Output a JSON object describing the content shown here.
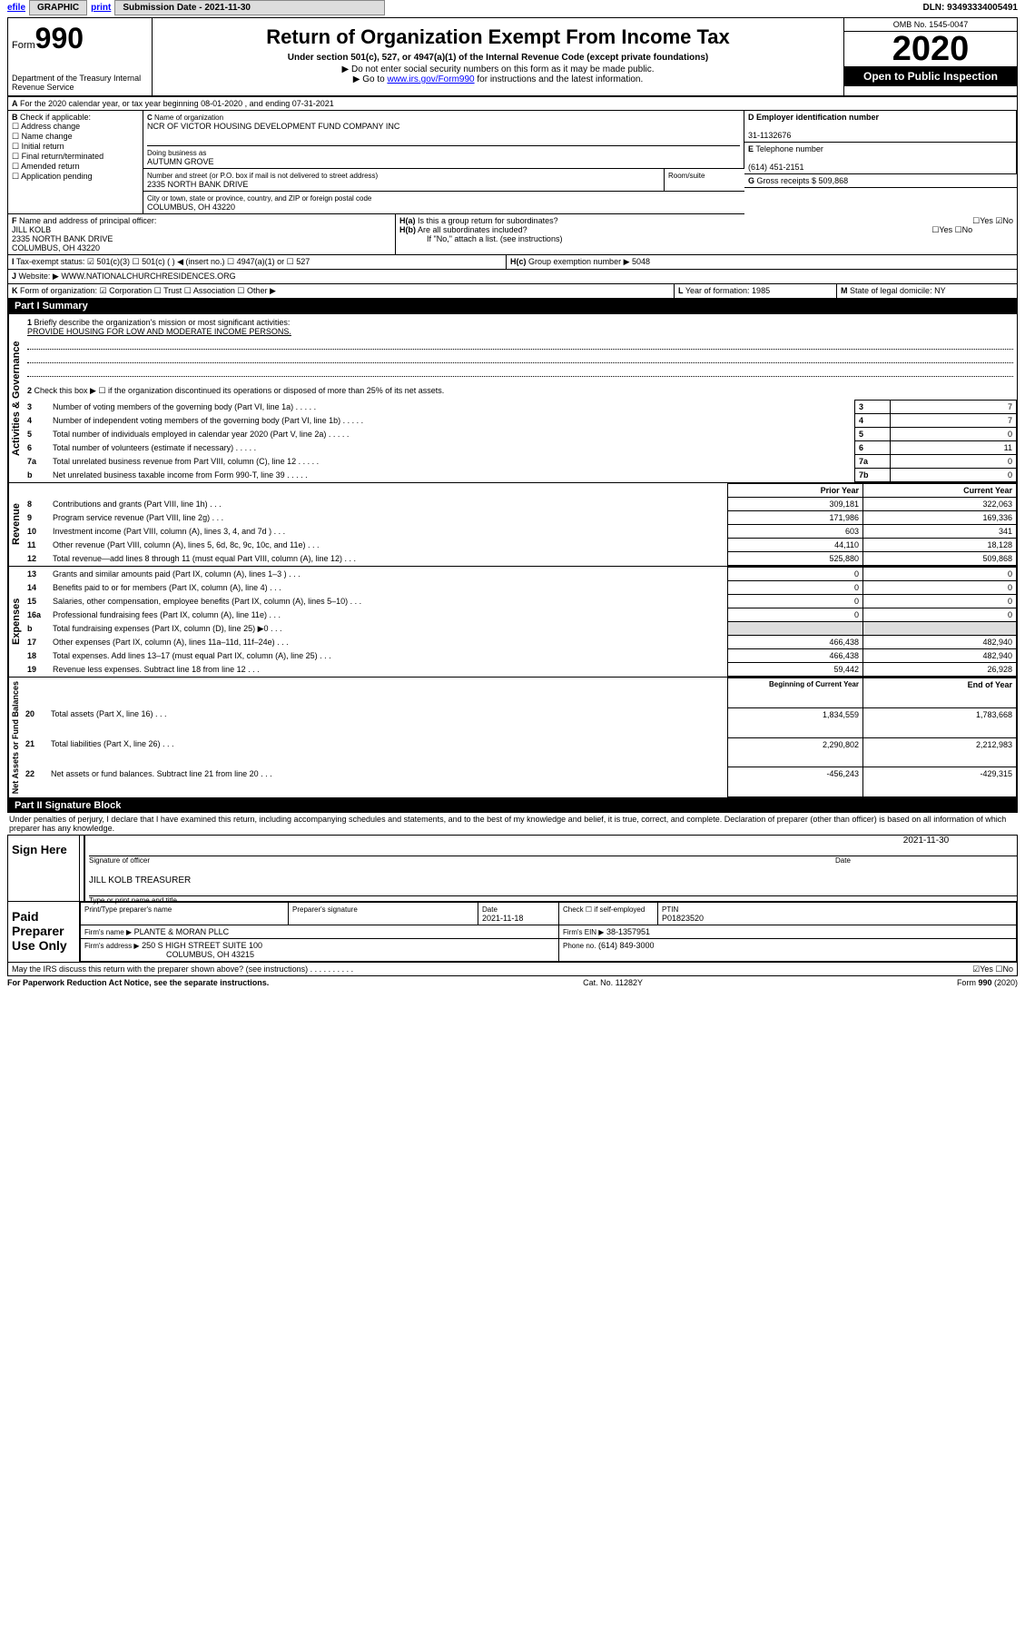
{
  "topbar": {
    "efile": "efile",
    "graphic": "GRAPHIC",
    "print": "print",
    "subdate_lbl": "Submission Date - 2021-11-30",
    "dln": "DLN: 93493334005491"
  },
  "header": {
    "form": "Form",
    "form_no": "990",
    "dept": "Department of the Treasury Internal Revenue Service",
    "title": "Return of Organization Exempt From Income Tax",
    "sub1": "Under section 501(c), 527, or 4947(a)(1) of the Internal Revenue Code (except private foundations)",
    "sub2": "▶ Do not enter social security numbers on this form as it may be made public.",
    "sub3_pre": "▶ Go to ",
    "sub3_link": "www.irs.gov/Form990",
    "sub3_post": " for instructions and the latest information.",
    "omb": "OMB No. 1545-0047",
    "year": "2020",
    "pubinsp": "Open to Public Inspection"
  },
  "A": "For the 2020 calendar year, or tax year beginning 08-01-2020    , and ending 07-31-2021",
  "B": {
    "lbl": "Check if applicable:",
    "items": [
      "Address change",
      "Name change",
      "Initial return",
      "Final return/terminated",
      "Amended return",
      "Application pending"
    ]
  },
  "C": {
    "name_lbl": "Name of organization",
    "name": "NCR OF VICTOR HOUSING DEVELOPMENT FUND COMPANY INC",
    "dba_lbl": "Doing business as",
    "dba": "AUTUMN GROVE",
    "addr_lbl": "Number and street (or P.O. box if mail is not delivered to street address)",
    "room_lbl": "Room/suite",
    "addr": "2335 NORTH BANK DRIVE",
    "city_lbl": "City or town, state or province, country, and ZIP or foreign postal code",
    "city": "COLUMBUS, OH  43220"
  },
  "D": {
    "lbl": "Employer identification number",
    "val": "31-1132676"
  },
  "E": {
    "lbl": "Telephone number",
    "val": "(614) 451-2151"
  },
  "G": {
    "lbl": "Gross receipts $ 509,868"
  },
  "F": {
    "lbl": "Name and address of principal officer:",
    "name": "JILL KOLB",
    "addr1": "2335 NORTH BANK DRIVE",
    "addr2": "COLUMBUS, OH  43220"
  },
  "H": {
    "a": "Is this a group return for subordinates?",
    "b": "Are all subordinates included?",
    "note": "If \"No,\" attach a list. (see instructions)",
    "c": "Group exemption number ▶",
    "c_val": "5048"
  },
  "I": {
    "lbl": "Tax-exempt status:",
    "opts": [
      "501(c)(3)",
      "501(c) (   ) ◀ (insert no.)",
      "4947(a)(1) or",
      "527"
    ]
  },
  "J": {
    "lbl": "Website: ▶",
    "val": "WWW.NATIONALCHURCHRESIDENCES.ORG"
  },
  "K": {
    "lbl": "Form of organization:",
    "opts": [
      "Corporation",
      "Trust",
      "Association",
      "Other ▶"
    ]
  },
  "L": {
    "lbl": "Year of formation: 1985"
  },
  "M": {
    "lbl": "State of legal domicile: NY"
  },
  "part1": {
    "hdr": "Part I    Summary",
    "side1": "Activities & Governance",
    "side2": "Revenue",
    "side3": "Expenses",
    "side4": "Net Assets or Fund Balances",
    "l1_lbl": "Briefly describe the organization's mission or most significant activities:",
    "l1": "PROVIDE HOUSING FOR LOW AND MODERATE INCOME PERSONS.",
    "l2": "Check this box ▶ ☐ if the organization discontinued its operations or disposed of more than 25% of its net assets.",
    "rows_gov": [
      {
        "n": "3",
        "t": "Number of voting members of the governing body (Part VI, line 1a)",
        "b": "3",
        "v": "7"
      },
      {
        "n": "4",
        "t": "Number of independent voting members of the governing body (Part VI, line 1b)",
        "b": "4",
        "v": "7"
      },
      {
        "n": "5",
        "t": "Total number of individuals employed in calendar year 2020 (Part V, line 2a)",
        "b": "5",
        "v": "0"
      },
      {
        "n": "6",
        "t": "Total number of volunteers (estimate if necessary)",
        "b": "6",
        "v": "11"
      },
      {
        "n": "7a",
        "t": "Total unrelated business revenue from Part VIII, column (C), line 12",
        "b": "7a",
        "v": "0"
      },
      {
        "n": "b",
        "t": "Net unrelated business taxable income from Form 990-T, line 39",
        "b": "7b",
        "v": "0"
      }
    ],
    "colhdr": {
      "p": "Prior Year",
      "c": "Current Year"
    },
    "rows_rev": [
      {
        "n": "8",
        "t": "Contributions and grants (Part VIII, line 1h)",
        "p": "309,181",
        "c": "322,063"
      },
      {
        "n": "9",
        "t": "Program service revenue (Part VIII, line 2g)",
        "p": "171,986",
        "c": "169,336"
      },
      {
        "n": "10",
        "t": "Investment income (Part VIII, column (A), lines 3, 4, and 7d )",
        "p": "603",
        "c": "341"
      },
      {
        "n": "11",
        "t": "Other revenue (Part VIII, column (A), lines 5, 6d, 8c, 9c, 10c, and 11e)",
        "p": "44,110",
        "c": "18,128"
      },
      {
        "n": "12",
        "t": "Total revenue—add lines 8 through 11 (must equal Part VIII, column (A), line 12)",
        "p": "525,880",
        "c": "509,868"
      }
    ],
    "rows_exp": [
      {
        "n": "13",
        "t": "Grants and similar amounts paid (Part IX, column (A), lines 1–3 )",
        "p": "0",
        "c": "0"
      },
      {
        "n": "14",
        "t": "Benefits paid to or for members (Part IX, column (A), line 4)",
        "p": "0",
        "c": "0"
      },
      {
        "n": "15",
        "t": "Salaries, other compensation, employee benefits (Part IX, column (A), lines 5–10)",
        "p": "0",
        "c": "0"
      },
      {
        "n": "16a",
        "t": "Professional fundraising fees (Part IX, column (A), line 11e)",
        "p": "0",
        "c": "0"
      },
      {
        "n": "b",
        "t": "Total fundraising expenses (Part IX, column (D), line 25) ▶0",
        "p": "shade",
        "c": "shade"
      },
      {
        "n": "17",
        "t": "Other expenses (Part IX, column (A), lines 11a–11d, 11f–24e)",
        "p": "466,438",
        "c": "482,940"
      },
      {
        "n": "18",
        "t": "Total expenses. Add lines 13–17 (must equal Part IX, column (A), line 25)",
        "p": "466,438",
        "c": "482,940"
      },
      {
        "n": "19",
        "t": "Revenue less expenses. Subtract line 18 from line 12",
        "p": "59,442",
        "c": "26,928"
      }
    ],
    "colhdr2": {
      "p": "Beginning of Current Year",
      "c": "End of Year"
    },
    "rows_net": [
      {
        "n": "20",
        "t": "Total assets (Part X, line 16)",
        "p": "1,834,559",
        "c": "1,783,668"
      },
      {
        "n": "21",
        "t": "Total liabilities (Part X, line 26)",
        "p": "2,290,802",
        "c": "2,212,983"
      },
      {
        "n": "22",
        "t": "Net assets or fund balances. Subtract line 21 from line 20",
        "p": "-456,243",
        "c": "-429,315"
      }
    ]
  },
  "part2": {
    "hdr": "Part II    Signature Block",
    "decl": "Under penalties of perjury, I declare that I have examined this return, including accompanying schedules and statements, and to the best of my knowledge and belief, it is true, correct, and complete. Declaration of preparer (other than officer) is based on all information of which preparer has any knowledge.",
    "sign": "Sign Here",
    "sig_lbl": "Signature of officer",
    "date": "2021-11-30",
    "date_lbl": "Date",
    "name": "JILL KOLB  TREASURER",
    "name_lbl": "Type or print name and title",
    "paid": "Paid Preparer Use Only",
    "prep_name_lbl": "Print/Type preparer's name",
    "prep_sig_lbl": "Preparer's signature",
    "prep_date_lbl": "Date",
    "prep_date": "2021-11-18",
    "check_lbl": "Check ☐ if self-employed",
    "ptin_lbl": "PTIN",
    "ptin": "P01823520",
    "firm_lbl": "Firm's name    ▶",
    "firm": "PLANTE & MORAN PLLC",
    "ein_lbl": "Firm's EIN ▶",
    "ein": "38-1357951",
    "addr_lbl": "Firm's address ▶",
    "addr": "250 S HIGH STREET SUITE 100",
    "addr2": "COLUMBUS, OH  43215",
    "phone_lbl": "Phone no.",
    "phone": "(614) 849-3000",
    "discuss": "May the IRS discuss this return with the preparer shown above? (see instructions)"
  },
  "footer": {
    "l": "For Paperwork Reduction Act Notice, see the separate instructions.",
    "m": "Cat. No. 11282Y",
    "r": "Form 990 (2020)"
  }
}
